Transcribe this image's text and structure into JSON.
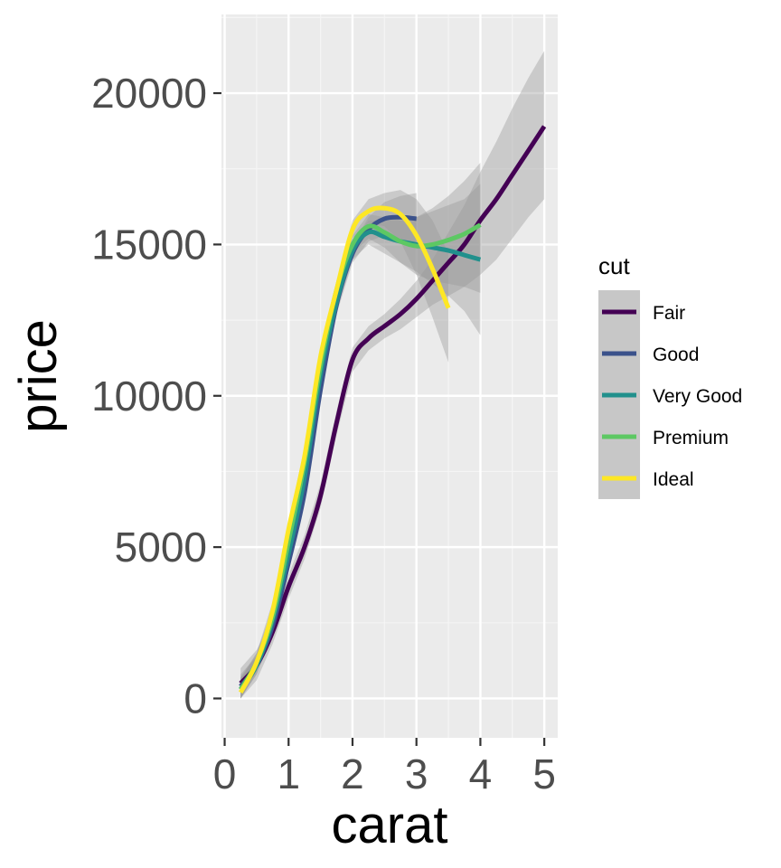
{
  "chart_data": {
    "type": "line",
    "xlabel": "carat",
    "ylabel": "price",
    "xlim": [
      -0.05,
      5.21
    ],
    "ylim": [
      -1300,
      22600
    ],
    "x_ticks": [
      0,
      1,
      2,
      3,
      4,
      5
    ],
    "x_tick_labels": [
      "0",
      "1",
      "2",
      "3",
      "4",
      "5"
    ],
    "y_ticks": [
      0,
      5000,
      10000,
      15000,
      20000
    ],
    "y_tick_labels": [
      "0",
      "5000",
      "10000",
      "15000",
      "20000"
    ],
    "grid": true,
    "legend": {
      "title": "cut",
      "placement": "right"
    },
    "series": [
      {
        "name": "Fair",
        "color": "#440154",
        "x": [
          0.25,
          0.5,
          0.75,
          1.0,
          1.25,
          1.5,
          1.75,
          2.0,
          2.25,
          2.5,
          2.75,
          3.0,
          3.25,
          3.5,
          3.75,
          4.0,
          4.25,
          4.5,
          4.75,
          5.0
        ],
        "y": [
          500,
          1100,
          2200,
          3700,
          5000,
          6700,
          9100,
          11200,
          11900,
          12300,
          12700,
          13200,
          13800,
          14400,
          15000,
          15800,
          16500,
          17300,
          18100,
          18900
        ],
        "band_lower": [
          0,
          600,
          1800,
          3300,
          4600,
          6300,
          8700,
          10800,
          11500,
          11900,
          12200,
          12600,
          13000,
          13300,
          13600,
          14000,
          14500,
          15200,
          15900,
          16500
        ],
        "band_upper": [
          1000,
          1600,
          2600,
          4100,
          5400,
          7100,
          9500,
          11600,
          12300,
          12700,
          13200,
          13800,
          14500,
          15400,
          16300,
          17400,
          18400,
          19500,
          20500,
          21400
        ]
      },
      {
        "name": "Good",
        "color": "#3b528b",
        "x": [
          0.25,
          0.5,
          0.75,
          1.0,
          1.25,
          1.5,
          1.75,
          2.0,
          2.25,
          2.5,
          2.75,
          3.0
        ],
        "y": [
          400,
          1100,
          2400,
          4500,
          6800,
          10200,
          13000,
          14700,
          15500,
          15850,
          15900,
          15850
        ],
        "band_lower": [
          0,
          800,
          2100,
          4200,
          6500,
          9900,
          12700,
          14400,
          15100,
          15300,
          15200,
          15000
        ],
        "band_upper": [
          800,
          1400,
          2700,
          4800,
          7100,
          10500,
          13300,
          15000,
          15900,
          16400,
          16600,
          16700
        ]
      },
      {
        "name": "Very Good",
        "color": "#21908c",
        "x": [
          0.25,
          0.5,
          0.75,
          1.0,
          1.25,
          1.5,
          1.75,
          2.0,
          2.25,
          2.5,
          2.75,
          3.0,
          3.25,
          3.5,
          3.75,
          4.0
        ],
        "y": [
          300,
          1100,
          2600,
          4800,
          7300,
          10700,
          13100,
          14800,
          15400,
          15250,
          15100,
          15000,
          14900,
          14800,
          14650,
          14500
        ],
        "band_lower": [
          0,
          800,
          2300,
          4500,
          7000,
          10400,
          12800,
          14500,
          15000,
          14700,
          14400,
          14100,
          13700,
          13300,
          12800,
          12000
        ],
        "band_upper": [
          700,
          1400,
          2900,
          5100,
          7600,
          11000,
          13400,
          15100,
          15800,
          15800,
          15800,
          15900,
          16100,
          16300,
          16500,
          17000
        ]
      },
      {
        "name": "Premium",
        "color": "#5dc863",
        "x": [
          0.25,
          0.5,
          0.75,
          1.0,
          1.25,
          1.5,
          1.75,
          2.0,
          2.25,
          2.5,
          2.75,
          3.0,
          3.25,
          3.5,
          3.75,
          4.0
        ],
        "y": [
          300,
          1200,
          2700,
          5200,
          7800,
          11000,
          13500,
          15000,
          15600,
          15400,
          15100,
          14950,
          15000,
          15150,
          15350,
          15650
        ],
        "band_lower": [
          0,
          900,
          2400,
          4900,
          7500,
          10700,
          13200,
          14700,
          15200,
          14900,
          14400,
          14000,
          13800,
          13700,
          13600,
          13400
        ],
        "band_upper": [
          700,
          1500,
          3000,
          5500,
          8100,
          11300,
          13800,
          15300,
          16000,
          15900,
          15800,
          15900,
          16200,
          16600,
          17100,
          17700
        ]
      },
      {
        "name": "Ideal",
        "color": "#fde725",
        "x": [
          0.25,
          0.5,
          0.75,
          1.0,
          1.25,
          1.5,
          1.75,
          2.0,
          2.25,
          2.5,
          2.75,
          3.0,
          3.25,
          3.5
        ],
        "y": [
          200,
          1200,
          2900,
          5600,
          8000,
          11300,
          13500,
          15500,
          16100,
          16200,
          16000,
          15300,
          14200,
          12900
        ],
        "band_lower": [
          0,
          900,
          2600,
          5300,
          7700,
          11000,
          13200,
          15200,
          15700,
          15600,
          15100,
          14000,
          12600,
          11100
        ],
        "band_upper": [
          600,
          1500,
          3200,
          5900,
          8300,
          11600,
          13800,
          15800,
          16500,
          16700,
          16800,
          16500,
          15800,
          14700
        ]
      }
    ]
  }
}
